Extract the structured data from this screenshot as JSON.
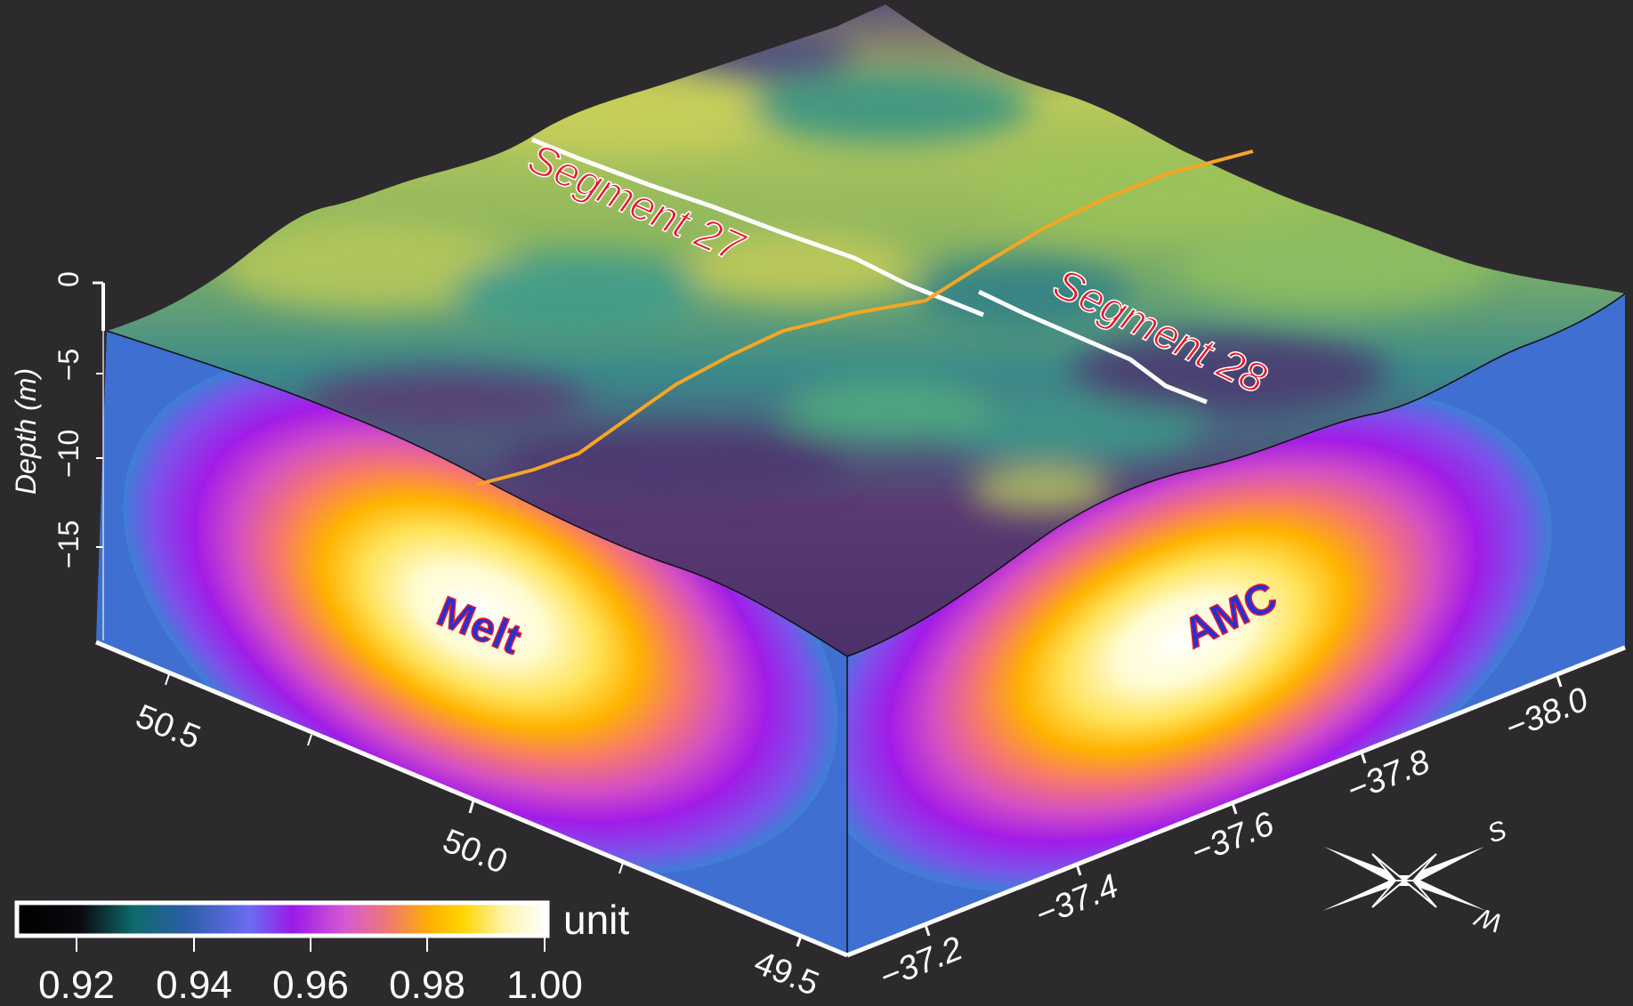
{
  "figure": {
    "depth_axis_label": "Depth (m)",
    "depth_ticks": [
      "0",
      "−5",
      "−10",
      "−15"
    ],
    "left_axis_ticks": [
      "50.5",
      "50.0",
      "49.5"
    ],
    "right_axis_ticks": [
      "−37.2",
      "−37.4",
      "−37.6",
      "−37.8",
      "−38.0"
    ],
    "annotations": {
      "segment_27": "Segment 27",
      "segment_28": "Segment 28",
      "melt": "Melt",
      "amc": "AMC"
    },
    "colorbar": {
      "unit": "unit",
      "ticks": [
        "0.92",
        "0.94",
        "0.96",
        "0.98",
        "1.00"
      ]
    },
    "compass": {
      "south": "S",
      "west": "W"
    },
    "colors": {
      "background": "#2d2a2e",
      "segment_line": "#ffffff",
      "ridge_line": "#f5a623",
      "label_red": "#e8192c",
      "label_blue": "#2232d6"
    }
  }
}
